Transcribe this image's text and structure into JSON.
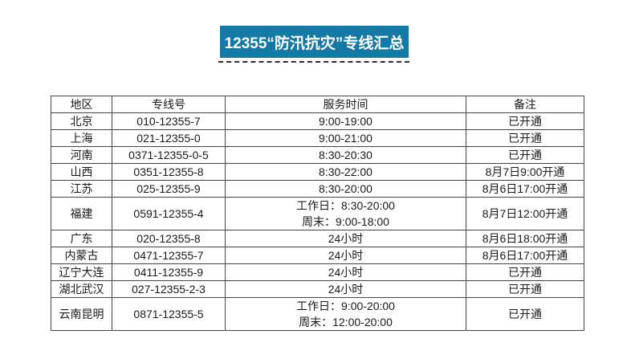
{
  "banner": {
    "title": "12355“防汛抗灾”专线汇总",
    "bg_color": "#1479A4",
    "text_color": "#FFFFFF"
  },
  "separator": {
    "style": "dashed",
    "color": "#2E2E2E"
  },
  "table": {
    "headers": [
      "地区",
      "专线号",
      "服务时间",
      "备注"
    ],
    "rows": [
      {
        "region": "北京",
        "number": "010-12355-7",
        "time": "9:00-19:00",
        "remark": "已开通"
      },
      {
        "region": "上海",
        "number": "021-12355-0",
        "time": "9:00-21:00",
        "remark": "已开通"
      },
      {
        "region": "河南",
        "number": "0371-12355-0-5",
        "time": "8:30-20:30",
        "remark": "已开通"
      },
      {
        "region": "山西",
        "number": "0351-12355-8",
        "time": "8:30-22:00",
        "remark": "8月7日9:00开通"
      },
      {
        "region": "江苏",
        "number": "025-12355-9",
        "time": "8:30-20:00",
        "remark": "8月6日17:00开通"
      },
      {
        "region": "福建",
        "number": "0591-12355-4",
        "time": "工作日：8:30-20:00\n周末：9:00-18:00",
        "remark": "8月7日12:00开通"
      },
      {
        "region": "广东",
        "number": "020-12355-8",
        "time": "24小时",
        "remark": "8月6日18:00开通"
      },
      {
        "region": "内蒙古",
        "number": "0471-12355-7",
        "time": "24小时",
        "remark": "8月6日17:00开通"
      },
      {
        "region": "辽宁大连",
        "number": "0411-12355-9",
        "time": "24小时",
        "remark": "已开通"
      },
      {
        "region": "湖北武汉",
        "number": "027-12355-2-3",
        "time": "24小时",
        "remark": "已开通"
      },
      {
        "region": "云南昆明",
        "number": "0871-12355-5",
        "time": "工作日：9:00-20:00\n周末：12:00-20:00",
        "remark": "已开通"
      }
    ]
  }
}
